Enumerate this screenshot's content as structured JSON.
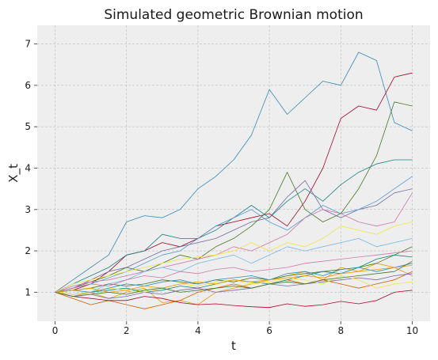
{
  "chart_data": {
    "type": "line",
    "title": "Simulated geometric Brownian motion",
    "xlabel": "t",
    "ylabel": "X_t",
    "xlim": [
      -0.5,
      10.5
    ],
    "ylim": [
      0.3,
      7.45
    ],
    "xticks": [
      "0",
      "2",
      "4",
      "6",
      "8",
      "10"
    ],
    "yticks": [
      "1",
      "2",
      "3",
      "4",
      "5",
      "6",
      "7"
    ],
    "grid": true,
    "legend": "none",
    "background": "#eeeeee",
    "x": [
      0,
      0.5,
      1,
      1.5,
      2,
      2.5,
      3,
      3.5,
      4,
      4.5,
      5,
      5.5,
      6,
      6.5,
      7,
      7.5,
      8,
      8.5,
      9,
      9.5,
      10
    ],
    "series": [
      {
        "color": "#348abd",
        "values": [
          1.0,
          1.3,
          1.6,
          1.9,
          2.7,
          2.85,
          2.8,
          3.0,
          3.5,
          3.8,
          4.2,
          4.8,
          5.9,
          5.3,
          5.7,
          6.1,
          6.0,
          6.8,
          6.6,
          5.1,
          4.9
        ]
      },
      {
        "color": "#a60628",
        "values": [
          1.0,
          1.05,
          1.2,
          1.5,
          1.9,
          2.0,
          2.2,
          2.1,
          2.3,
          2.6,
          2.7,
          2.8,
          2.9,
          2.6,
          3.2,
          4.0,
          5.2,
          5.5,
          5.4,
          6.2,
          6.3
        ]
      },
      {
        "color": "#467821",
        "values": [
          1.0,
          1.1,
          1.25,
          1.4,
          1.6,
          1.5,
          1.7,
          1.9,
          1.8,
          2.1,
          2.3,
          2.6,
          3.0,
          3.9,
          3.0,
          2.7,
          2.9,
          3.5,
          4.3,
          5.6,
          5.5
        ]
      },
      {
        "color": "#188487",
        "values": [
          1.0,
          1.2,
          1.4,
          1.6,
          1.9,
          2.0,
          2.4,
          2.3,
          2.3,
          2.5,
          2.8,
          3.1,
          2.8,
          3.2,
          3.5,
          3.2,
          3.6,
          3.9,
          4.1,
          4.2,
          4.2
        ]
      },
      {
        "color": "#7a68a6",
        "values": [
          1.0,
          1.1,
          1.3,
          1.5,
          1.6,
          1.8,
          2.0,
          2.1,
          2.2,
          2.3,
          2.5,
          2.7,
          2.8,
          3.3,
          3.7,
          3.0,
          2.8,
          3.0,
          3.1,
          3.4,
          3.5
        ]
      },
      {
        "color": "#529ad5",
        "values": [
          1.0,
          1.1,
          1.2,
          1.35,
          1.5,
          1.7,
          1.9,
          2.0,
          2.3,
          2.6,
          2.8,
          3.0,
          2.7,
          2.5,
          2.8,
          3.1,
          2.9,
          3.0,
          3.2,
          3.5,
          3.8
        ]
      },
      {
        "color": "#cc79a7",
        "values": [
          1.0,
          1.15,
          1.25,
          1.3,
          1.4,
          1.5,
          1.6,
          1.7,
          1.8,
          1.9,
          2.1,
          2.0,
          2.2,
          2.4,
          2.8,
          3.0,
          2.9,
          2.7,
          2.6,
          2.7,
          3.4
        ]
      },
      {
        "color": "#f0e442",
        "values": [
          1.0,
          1.2,
          1.3,
          1.4,
          1.5,
          1.6,
          1.7,
          1.8,
          1.85,
          1.9,
          2.0,
          2.2,
          2.0,
          2.2,
          2.1,
          2.3,
          2.6,
          2.5,
          2.4,
          2.6,
          2.7
        ]
      },
      {
        "color": "#76b7e5",
        "values": [
          1.0,
          0.9,
          1.0,
          1.2,
          1.3,
          1.5,
          1.6,
          1.5,
          1.7,
          1.8,
          1.9,
          1.7,
          1.9,
          2.1,
          2.0,
          2.1,
          2.2,
          2.3,
          2.1,
          2.2,
          2.3
        ]
      },
      {
        "color": "#e69f00",
        "values": [
          1.0,
          0.9,
          1.0,
          0.85,
          1.0,
          1.1,
          0.75,
          0.8,
          0.7,
          1.0,
          1.1,
          1.2,
          1.3,
          1.4,
          1.5,
          1.3,
          1.6,
          1.5,
          1.7,
          1.6,
          1.4
        ]
      },
      {
        "color": "#d55e00",
        "values": [
          1.0,
          0.85,
          0.7,
          0.8,
          0.7,
          0.6,
          0.7,
          0.8,
          1.0,
          1.1,
          1.2,
          1.1,
          1.2,
          1.3,
          1.2,
          1.3,
          1.2,
          1.1,
          1.2,
          1.3,
          1.5
        ]
      },
      {
        "color": "#a60628",
        "values": [
          1.0,
          0.9,
          0.85,
          0.8,
          0.8,
          0.9,
          0.85,
          0.75,
          0.7,
          0.72,
          0.68,
          0.65,
          0.63,
          0.72,
          0.66,
          0.7,
          0.78,
          0.72,
          0.8,
          1.0,
          1.05
        ]
      },
      {
        "color": "#467821",
        "values": [
          1.0,
          1.05,
          1.1,
          1.2,
          1.15,
          1.2,
          1.3,
          1.25,
          1.2,
          1.3,
          1.25,
          1.35,
          1.3,
          1.4,
          1.45,
          1.5,
          1.55,
          1.6,
          1.7,
          1.9,
          2.1
        ]
      },
      {
        "color": "#188487",
        "values": [
          1.0,
          0.95,
          1.0,
          1.05,
          1.1,
          1.0,
          1.05,
          1.15,
          1.1,
          1.2,
          1.3,
          1.25,
          1.2,
          1.3,
          1.4,
          1.5,
          1.45,
          1.6,
          1.8,
          1.9,
          1.85
        ]
      },
      {
        "color": "#7a68a6",
        "values": [
          1.0,
          0.9,
          0.95,
          0.85,
          0.9,
          1.0,
          0.95,
          1.05,
          1.1,
          1.0,
          1.05,
          1.1,
          1.2,
          1.15,
          1.2,
          1.25,
          1.3,
          1.35,
          1.3,
          1.4,
          1.45
        ]
      },
      {
        "color": "#cc79a7",
        "values": [
          1.0,
          1.1,
          1.2,
          1.15,
          1.3,
          1.4,
          1.35,
          1.5,
          1.45,
          1.55,
          1.6,
          1.5,
          1.55,
          1.6,
          1.7,
          1.75,
          1.8,
          1.85,
          1.9,
          1.95,
          2.0
        ]
      },
      {
        "color": "#f0e442",
        "values": [
          1.0,
          0.95,
          1.0,
          1.1,
          1.05,
          1.0,
          1.1,
          1.2,
          1.15,
          1.25,
          1.3,
          1.2,
          1.25,
          1.35,
          1.3,
          1.2,
          1.4,
          1.3,
          1.1,
          1.2,
          1.25
        ]
      },
      {
        "color": "#348abd",
        "values": [
          1.0,
          1.05,
          1.0,
          1.1,
          1.2,
          1.15,
          1.25,
          1.3,
          1.2,
          1.3,
          1.35,
          1.4,
          1.3,
          1.45,
          1.5,
          1.4,
          1.55,
          1.6,
          1.5,
          1.6,
          1.7
        ]
      },
      {
        "color": "#e69f00",
        "values": [
          1.0,
          1.05,
          1.1,
          1.0,
          1.05,
          1.15,
          1.1,
          1.2,
          1.25,
          1.2,
          1.3,
          1.25,
          1.3,
          1.35,
          1.4,
          1.35,
          1.45,
          1.5,
          1.55,
          1.6,
          1.65
        ]
      },
      {
        "color": "#467821",
        "values": [
          1.0,
          0.9,
          0.95,
          1.0,
          0.95,
          1.05,
          1.1,
          1.0,
          1.05,
          1.1,
          1.15,
          1.1,
          1.2,
          1.25,
          1.2,
          1.3,
          1.35,
          1.4,
          1.45,
          1.5,
          1.75
        ]
      }
    ]
  }
}
